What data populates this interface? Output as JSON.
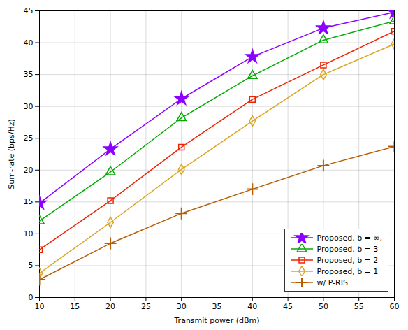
{
  "chart_data": {
    "type": "line",
    "xlabel": "Transmit power (dBm)",
    "ylabel": "Sum-rate (bps/Hz)",
    "x": [
      10,
      20,
      30,
      40,
      50,
      60
    ],
    "series": [
      {
        "name": "Proposed, b = ∞,",
        "color": "#8B00FF",
        "marker": "star",
        "values": [
          14.8,
          23.3,
          31.2,
          37.8,
          42.3,
          44.8
        ]
      },
      {
        "name": "Proposed, b = 3",
        "color": "#00AA00",
        "marker": "triangle-open",
        "values": [
          12.0,
          19.7,
          28.2,
          34.8,
          40.4,
          43.4
        ]
      },
      {
        "name": "Proposed, b = 2",
        "color": "#EE2200",
        "marker": "square-open",
        "values": [
          7.5,
          15.2,
          23.6,
          31.1,
          36.5,
          41.8
        ]
      },
      {
        "name": "Proposed, b = 1",
        "color": "#DAA520",
        "marker": "diamond-open",
        "values": [
          3.8,
          11.8,
          20.1,
          27.7,
          35.0,
          39.8
        ]
      },
      {
        "name": "w/ P-RIS",
        "color": "#B85C00",
        "marker": "plus",
        "values": [
          2.8,
          8.5,
          13.2,
          17.0,
          20.7,
          23.7
        ]
      }
    ],
    "xlim": [
      10,
      60
    ],
    "ylim": [
      0,
      45
    ],
    "xticks": [
      10,
      15,
      20,
      25,
      30,
      35,
      40,
      45,
      50,
      55,
      60
    ],
    "yticks": [
      0,
      5,
      10,
      15,
      20,
      25,
      30,
      35,
      40,
      45
    ],
    "grid": true,
    "legend": "lower right"
  }
}
